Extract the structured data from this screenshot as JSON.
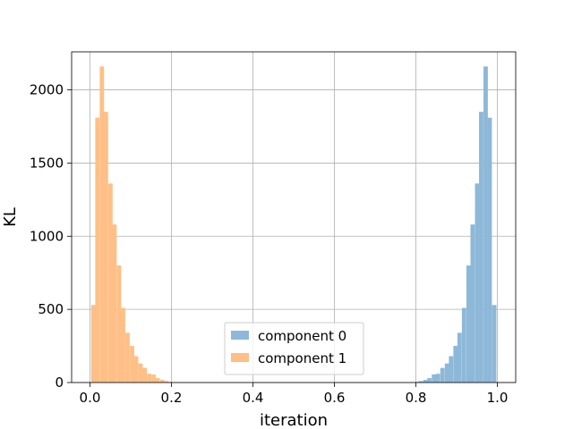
{
  "chart_data": {
    "type": "histogram",
    "xlabel": "iteration",
    "ylabel": "KL",
    "xlim": [
      -0.045,
      1.045
    ],
    "ylim": [
      0,
      2260
    ],
    "xticks": [
      0.0,
      0.2,
      0.4,
      0.6,
      0.8,
      1.0
    ],
    "xtick_labels": [
      "0.0",
      "0.2",
      "0.4",
      "0.6",
      "0.8",
      "1.0"
    ],
    "yticks": [
      0,
      500,
      1000,
      1500,
      2000
    ],
    "ytick_labels": [
      "0",
      "500",
      "1000",
      "1500",
      "2000"
    ],
    "grid": true,
    "legend_position": "lower center",
    "series": [
      {
        "name": "component 0",
        "color": "#8db8d8",
        "bin_width": 0.0106,
        "bins": [
          {
            "x0": 0.786,
            "value": 2
          },
          {
            "x0": 0.797,
            "value": 5
          },
          {
            "x0": 0.807,
            "value": 10
          },
          {
            "x0": 0.818,
            "value": 18
          },
          {
            "x0": 0.828,
            "value": 30
          },
          {
            "x0": 0.839,
            "value": 55
          },
          {
            "x0": 0.849,
            "value": 60
          },
          {
            "x0": 0.86,
            "value": 100
          },
          {
            "x0": 0.871,
            "value": 130
          },
          {
            "x0": 0.881,
            "value": 180
          },
          {
            "x0": 0.892,
            "value": 250
          },
          {
            "x0": 0.902,
            "value": 340
          },
          {
            "x0": 0.913,
            "value": 510
          },
          {
            "x0": 0.924,
            "value": 800
          },
          {
            "x0": 0.934,
            "value": 1080
          },
          {
            "x0": 0.945,
            "value": 1360
          },
          {
            "x0": 0.955,
            "value": 1850
          },
          {
            "x0": 0.966,
            "value": 2160
          },
          {
            "x0": 0.976,
            "value": 1810
          },
          {
            "x0": 0.987,
            "value": 530
          }
        ]
      },
      {
        "name": "component 1",
        "color": "#ffbf86",
        "bin_width": 0.0106,
        "bins": [
          {
            "x0": 0.003,
            "value": 530
          },
          {
            "x0": 0.013,
            "value": 1810
          },
          {
            "x0": 0.024,
            "value": 2160
          },
          {
            "x0": 0.034,
            "value": 1850
          },
          {
            "x0": 0.045,
            "value": 1360
          },
          {
            "x0": 0.055,
            "value": 1080
          },
          {
            "x0": 0.066,
            "value": 800
          },
          {
            "x0": 0.076,
            "value": 510
          },
          {
            "x0": 0.087,
            "value": 340
          },
          {
            "x0": 0.098,
            "value": 250
          },
          {
            "x0": 0.108,
            "value": 180
          },
          {
            "x0": 0.119,
            "value": 130
          },
          {
            "x0": 0.129,
            "value": 100
          },
          {
            "x0": 0.14,
            "value": 60
          },
          {
            "x0": 0.151,
            "value": 55
          },
          {
            "x0": 0.161,
            "value": 30
          },
          {
            "x0": 0.172,
            "value": 18
          },
          {
            "x0": 0.182,
            "value": 10
          },
          {
            "x0": 0.193,
            "value": 5
          },
          {
            "x0": 0.203,
            "value": 2
          }
        ]
      }
    ]
  }
}
